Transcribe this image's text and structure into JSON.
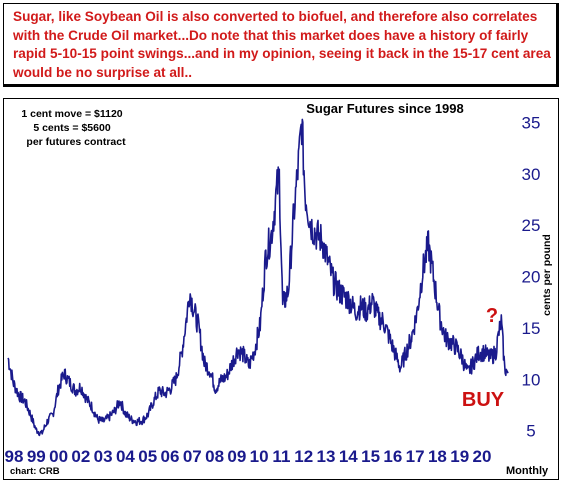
{
  "header": {
    "text": "Sugar, like Soybean Oil is also converted to biofuel, and therefore also correlates with the Crude Oil market...Do note that this market does have a history of fairly rapid 5-10-15 point swings...and in my opinion, seeing it back in the 15-17 cent area would be no surprise at all.."
  },
  "annotations": {
    "contract_line1": "1 cent move = $1120",
    "contract_line2": "5 cents = $5600",
    "contract_line3": "per futures contract",
    "buy_label": "BUY",
    "question_label": "?",
    "source": "chart: CRB",
    "frequency": "Monthly"
  },
  "colors": {
    "header_text": "#d11a1a",
    "series": "#1a1a8c",
    "axis_labels": "#1a1a8c",
    "buy": "#cc1111"
  },
  "chart_data": {
    "type": "line",
    "title": "Sugar Futures since 1998",
    "ylabel": "cents per pound",
    "xlabel": "",
    "ylim": [
      4,
      36.5
    ],
    "xlim": [
      1998.0,
      2020.3
    ],
    "yticks": [
      5,
      10,
      15,
      20,
      25,
      30,
      35
    ],
    "xticks": [
      "98",
      "99",
      "00",
      "02",
      "03",
      "04",
      "05",
      "06",
      "07",
      "08",
      "09",
      "10",
      "11",
      "12",
      "13",
      "14",
      "15",
      "16",
      "17",
      "18",
      "19",
      "20"
    ],
    "grid": false,
    "series": [
      {
        "name": "",
        "x": [
          1998.0,
          1998.25,
          1998.5,
          1998.75,
          1999.0,
          1999.25,
          1999.5,
          1999.75,
          2000.0,
          2000.25,
          2000.5,
          2000.75,
          2001.0,
          2001.25,
          2001.5,
          2001.75,
          2002.0,
          2002.25,
          2002.5,
          2002.75,
          2003.0,
          2003.25,
          2003.5,
          2003.75,
          2004.0,
          2004.25,
          2004.5,
          2004.75,
          2005.0,
          2005.25,
          2005.5,
          2005.75,
          2006.0,
          2006.1,
          2006.25,
          2006.5,
          2006.75,
          2007.0,
          2007.25,
          2007.5,
          2007.75,
          2008.0,
          2008.25,
          2008.5,
          2008.75,
          2009.0,
          2009.25,
          2009.5,
          2009.75,
          2010.0,
          2010.1,
          2010.25,
          2010.5,
          2010.75,
          2011.0,
          2011.1,
          2011.25,
          2011.5,
          2011.75,
          2012.0,
          2012.25,
          2012.5,
          2012.75,
          2013.0,
          2013.25,
          2013.5,
          2013.75,
          2014.0,
          2014.25,
          2014.5,
          2014.75,
          2015.0,
          2015.25,
          2015.5,
          2015.75,
          2016.0,
          2016.25,
          2016.5,
          2016.75,
          2017.0,
          2017.25,
          2017.5,
          2017.75,
          2018.0,
          2018.25,
          2018.5,
          2018.75,
          2019.0,
          2019.25,
          2019.5,
          2019.75,
          2019.9,
          2020.0,
          2020.15,
          2020.3
        ],
        "values": [
          12.0,
          9.5,
          8.3,
          7.8,
          6.5,
          5.0,
          4.6,
          5.8,
          6.5,
          9.0,
          10.5,
          9.6,
          8.8,
          9.2,
          8.0,
          7.2,
          6.0,
          5.8,
          6.2,
          6.8,
          7.8,
          6.5,
          6.0,
          5.8,
          5.9,
          6.5,
          7.8,
          8.8,
          8.5,
          9.0,
          10.0,
          12.5,
          16.5,
          18.5,
          17.0,
          15.0,
          11.5,
          10.8,
          9.0,
          9.8,
          10.2,
          11.5,
          12.8,
          12.3,
          11.2,
          12.8,
          15.2,
          22.0,
          24.0,
          28.5,
          29.5,
          17.0,
          18.5,
          26.0,
          32.0,
          35.0,
          28.0,
          25.0,
          24.0,
          23.5,
          21.5,
          19.5,
          18.5,
          18.0,
          17.5,
          16.5,
          17.0,
          16.5,
          17.5,
          16.0,
          15.5,
          14.0,
          12.5,
          11.0,
          12.5,
          14.0,
          16.5,
          20.5,
          23.0,
          19.5,
          16.0,
          14.0,
          13.5,
          13.0,
          12.0,
          10.5,
          11.5,
          12.5,
          12.5,
          12.0,
          12.5,
          14.5,
          15.5,
          11.0,
          10.5
        ]
      }
    ]
  }
}
